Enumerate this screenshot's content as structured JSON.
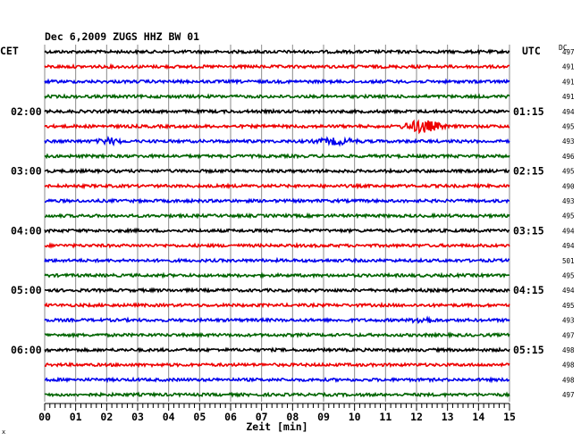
{
  "chart_data": {
    "type": "line",
    "title": "Dec 6,2009   ZUGS HHZ BW 01",
    "left_axis_label": "CET",
    "right_axis_label": "UTC",
    "dc_label": "DC",
    "xlabel": "Zeit [min]",
    "x_ticks": [
      "00",
      "01",
      "02",
      "03",
      "04",
      "05",
      "06",
      "07",
      "08",
      "09",
      "10",
      "11",
      "12",
      "13",
      "14",
      "15"
    ],
    "xlim": [
      0,
      15
    ],
    "trace_colors": [
      "#000000",
      "#ee0000",
      "#0000ee",
      "#006400"
    ],
    "grid": true,
    "left_time_labels": [
      {
        "trace": 4,
        "text": "02:00"
      },
      {
        "trace": 8,
        "text": "03:00"
      },
      {
        "trace": 12,
        "text": "04:00"
      },
      {
        "trace": 16,
        "text": "05:00"
      },
      {
        "trace": 20,
        "text": "06:00"
      }
    ],
    "right_time_labels": [
      {
        "trace": 4,
        "text": "01:15"
      },
      {
        "trace": 8,
        "text": "02:15"
      },
      {
        "trace": 12,
        "text": "03:15"
      },
      {
        "trace": 16,
        "text": "04:15"
      },
      {
        "trace": 20,
        "text": "05:15"
      }
    ],
    "dc_values": [
      "497",
      "491",
      "491",
      "491",
      "494",
      "495",
      "493",
      "496",
      "495",
      "490",
      "493",
      "495",
      "494",
      "494",
      "501",
      "495",
      "494",
      "495",
      "493",
      "497",
      "498",
      "498",
      "498",
      "497"
    ],
    "events": [
      {
        "trace": 5,
        "start_min": 11.4,
        "end_min": 13.0,
        "peak_min": 12.2,
        "amplitude": 7
      },
      {
        "trace": 6,
        "start_min": 1.6,
        "end_min": 2.6,
        "peak_min": 2.1,
        "amplitude": 3
      },
      {
        "trace": 6,
        "start_min": 8.6,
        "end_min": 10.4,
        "peak_min": 9.4,
        "amplitude": 3
      },
      {
        "trace": 18,
        "start_min": 11.8,
        "end_min": 12.8,
        "peak_min": 12.2,
        "amplitude": 3
      }
    ],
    "footer_mark": "x"
  }
}
